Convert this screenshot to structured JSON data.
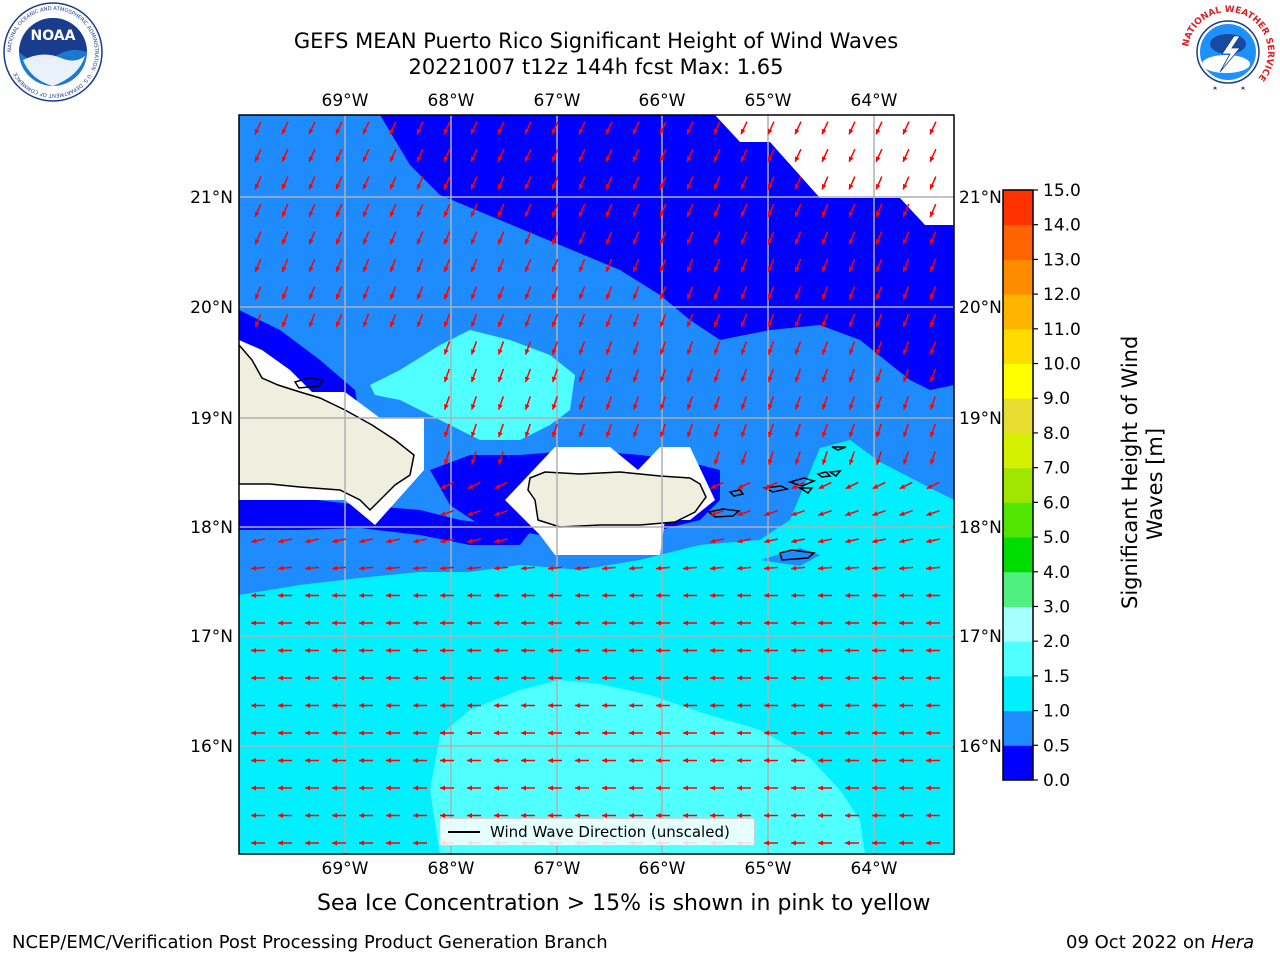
{
  "title": {
    "line1": "GEFS MEAN Puerto Rico Significant Height of Wind Waves",
    "line2": "20221007 t12z 144h fcst   Max: 1.65"
  },
  "map": {
    "lon_labels": [
      "69°W",
      "68°W",
      "67°W",
      "66°W",
      "65°W",
      "64°W"
    ],
    "lat_labels": [
      "21°N",
      "20°N",
      "19°N",
      "18°N",
      "17°N",
      "16°N"
    ],
    "gridline_color": "#b0b0b0",
    "land_color": "#efefdf",
    "missing_color": "#ffffff",
    "arrow_color": "#ff0000"
  },
  "legend": {
    "label": "Wind Wave Direction (unscaled)"
  },
  "colorbar": {
    "label_line1": "Significant Height of Wind",
    "label_line2": "Waves [m]",
    "ticks": [
      "0.0",
      "0.5",
      "1.0",
      "1.5",
      "2.0",
      "3.0",
      "4.0",
      "5.0",
      "6.0",
      "7.0",
      "8.0",
      "9.0",
      "10.0",
      "11.0",
      "12.0",
      "13.0",
      "14.0",
      "15.0"
    ],
    "colors": [
      "#0000ff",
      "#1e8cff",
      "#00f0ff",
      "#50ffff",
      "#a8ffff",
      "#50f080",
      "#00dc00",
      "#50e600",
      "#a0e600",
      "#d2f000",
      "#e6dc32",
      "#ffff00",
      "#ffdc00",
      "#ffb400",
      "#ff8c00",
      "#ff6400",
      "#ff3200",
      "#ff0000"
    ]
  },
  "caption": "Sea Ice Concentration > 15% is shown in pink to yellow",
  "footer": {
    "left": "NCEP/EMC/Verification Post Processing Product Generation Branch",
    "right_prefix": "09 Oct 2022 on ",
    "right_host": "Hera"
  },
  "logos": {
    "noaa_text": "NOAA",
    "noaa_ring": "NATIONAL OCEANIC AND ATMOSPHERIC ADMINISTRATION · U.S. DEPARTMENT OF COMMERCE",
    "nws_ring": "NATIONAL WEATHER SERVICE"
  }
}
